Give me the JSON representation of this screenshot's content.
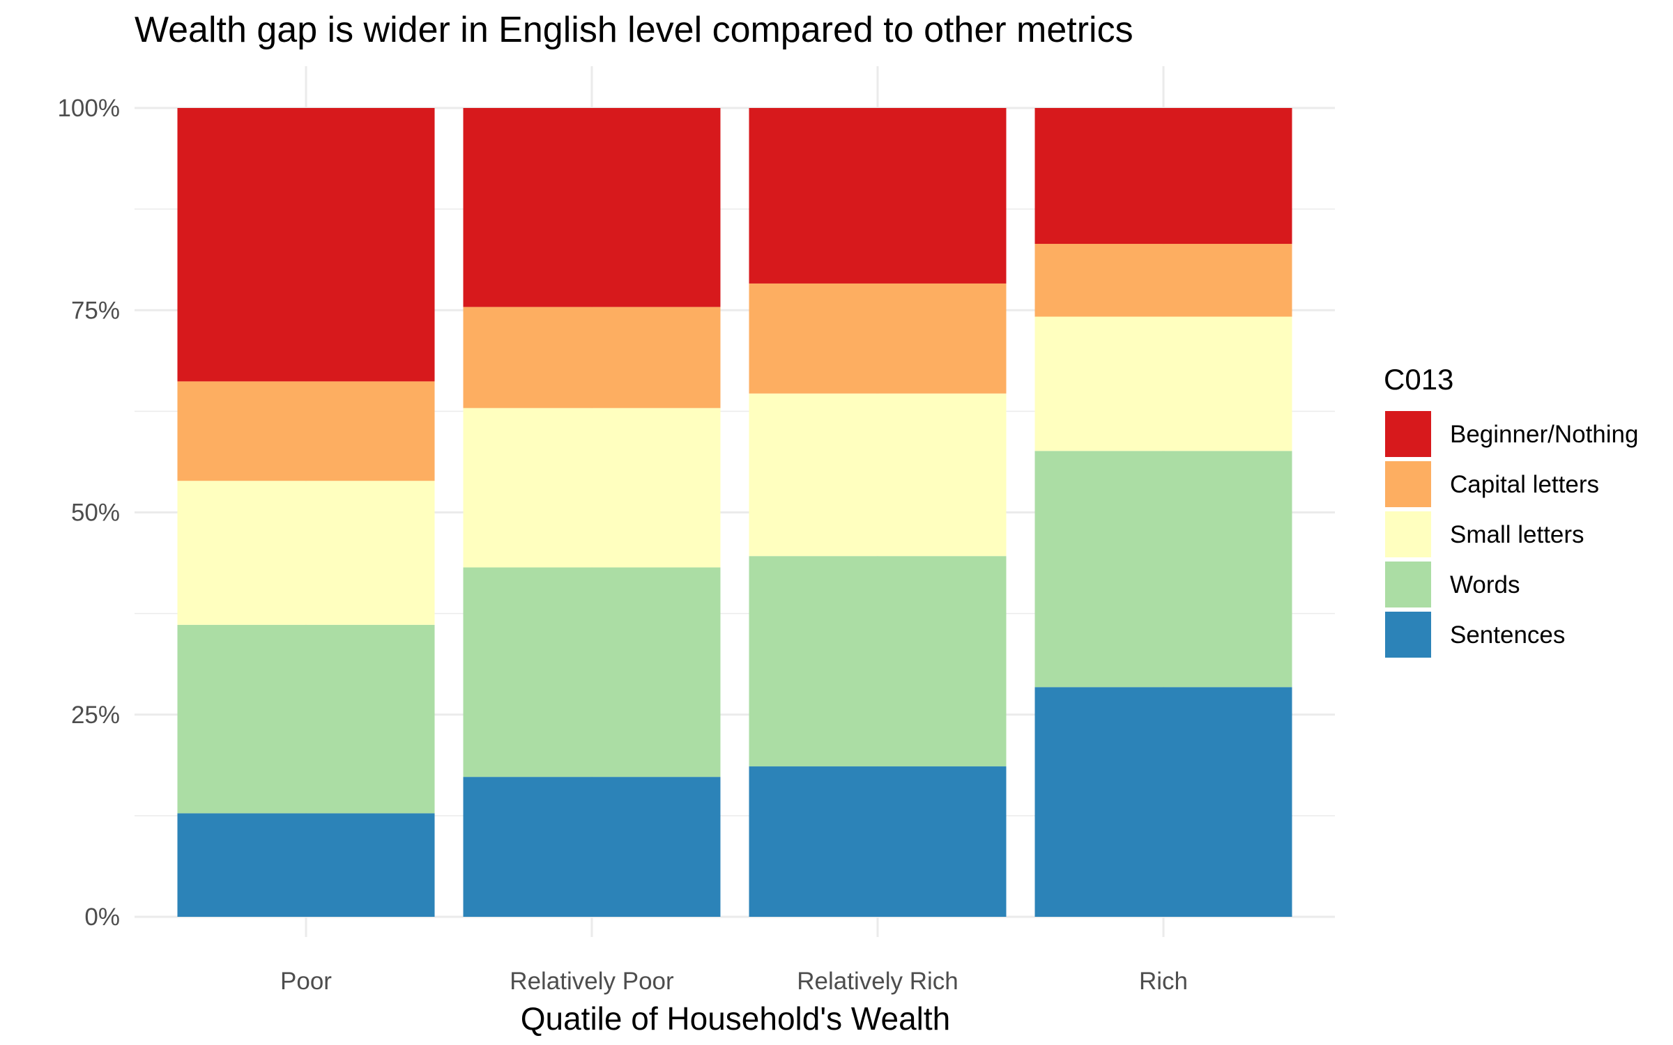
{
  "chart_data": {
    "type": "bar",
    "stacked": true,
    "percent": true,
    "title": "Wealth gap is wider in English level compared to other metrics",
    "xlabel": "Quatile of Household's Wealth",
    "ylabel": "",
    "ylim": [
      0,
      100
    ],
    "yticks": [
      "0%",
      "25%",
      "50%",
      "75%",
      "100%"
    ],
    "ytick_values": [
      0,
      25,
      50,
      75,
      100
    ],
    "grid": true,
    "legend": {
      "title": "C013",
      "placement": "right"
    },
    "categories": [
      "Poor",
      "Relatively Poor",
      "Relatively Rich",
      "Rich"
    ],
    "series": [
      {
        "name": "Sentences",
        "color": "#2c83b8",
        "values": [
          12.8,
          17.3,
          18.6,
          28.4
        ]
      },
      {
        "name": "Words",
        "color": "#abdda4",
        "values": [
          23.3,
          25.9,
          26.0,
          29.2
        ]
      },
      {
        "name": "Small letters",
        "color": "#ffffbf",
        "values": [
          17.8,
          19.7,
          20.1,
          16.6
        ]
      },
      {
        "name": "Capital letters",
        "color": "#fdae61",
        "values": [
          12.3,
          12.5,
          13.6,
          9.0
        ]
      },
      {
        "name": "Beginner/Nothing",
        "color": "#d7191c",
        "values": [
          33.8,
          24.6,
          21.7,
          16.8
        ]
      }
    ],
    "legend_order": [
      "Beginner/Nothing",
      "Capital letters",
      "Small letters",
      "Words",
      "Sentences"
    ]
  }
}
